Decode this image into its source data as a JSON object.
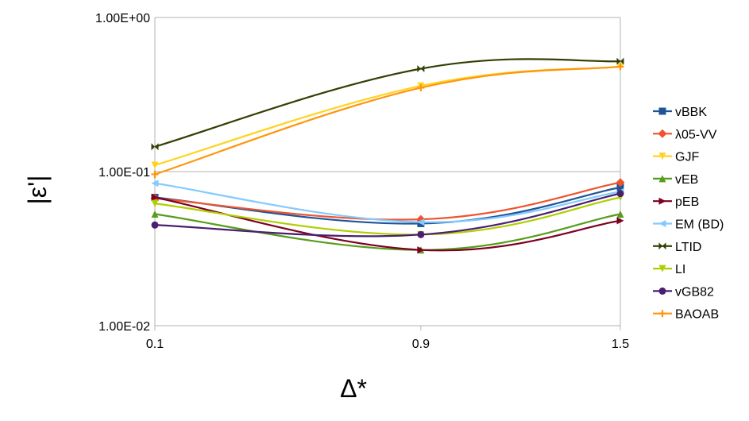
{
  "chart_data": {
    "type": "line",
    "scale_y": "log",
    "grid": "horizontal",
    "legend_position": "right",
    "xlabel": "Δ*",
    "ylabel": "|ε'|",
    "x": [
      0.1,
      0.9,
      1.5
    ],
    "x_tick_labels": [
      "0.1",
      "0.9",
      "1.5"
    ],
    "y_tick_labels": [
      "1.00E+00",
      "1.00E-01",
      "1.00E-02"
    ],
    "y_tick_values": [
      1,
      0.1,
      0.01
    ],
    "ylim": [
      0.01,
      1
    ],
    "series": [
      {
        "name": "vBBK",
        "color": "#1f5597",
        "marker": "square",
        "values": [
          0.068,
          0.046,
          0.079
        ]
      },
      {
        "name": "λ05-VV",
        "color": "#f0532d",
        "marker": "diamond",
        "values": [
          0.067,
          0.049,
          0.085
        ]
      },
      {
        "name": "GJF",
        "color": "#ffd320",
        "marker": "triangle-down",
        "values": [
          0.11,
          0.36,
          0.48
        ]
      },
      {
        "name": "vEB",
        "color": "#579d1c",
        "marker": "triangle-up",
        "values": [
          0.053,
          0.031,
          0.053
        ]
      },
      {
        "name": "pEB",
        "color": "#7e0021",
        "marker": "triangle-right",
        "values": [
          0.068,
          0.031,
          0.048
        ]
      },
      {
        "name": "EM (BD)",
        "color": "#83caff",
        "marker": "triangle-left",
        "values": [
          0.084,
          0.047,
          0.074
        ]
      },
      {
        "name": "LTID",
        "color": "#314004",
        "marker": "bowtie",
        "values": [
          0.145,
          0.465,
          0.52
        ]
      },
      {
        "name": "LI",
        "color": "#aecf00",
        "marker": "triangle-down",
        "values": [
          0.062,
          0.039,
          0.068
        ]
      },
      {
        "name": "vGB82",
        "color": "#4b1f6f",
        "marker": "circle",
        "values": [
          0.045,
          0.039,
          0.072
        ]
      },
      {
        "name": "BAOAB",
        "color": "#ff950e",
        "marker": "plus",
        "values": [
          0.096,
          0.35,
          0.48
        ]
      }
    ]
  }
}
